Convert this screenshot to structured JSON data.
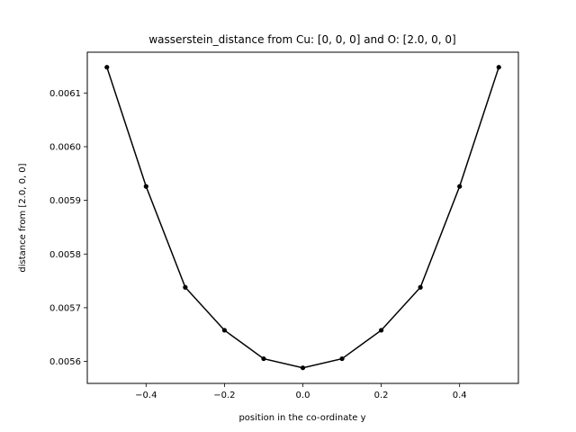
{
  "chart_data": {
    "type": "line",
    "title": "wasserstein_distance from Cu: [0, 0, 0] and O: [2.0, 0, 0]",
    "xlabel": "position in the co-ordinate y",
    "ylabel": "distance from [2.0, 0, 0]",
    "x": [
      -0.5,
      -0.4,
      -0.3,
      -0.2,
      -0.1,
      0.0,
      0.1,
      0.2,
      0.3,
      0.4,
      0.5
    ],
    "series": [
      {
        "values": [
          0.006148,
          0.005926,
          0.005738,
          0.005658,
          0.005605,
          0.005588,
          0.005605,
          0.005658,
          0.005738,
          0.005926,
          0.006148
        ],
        "color": "#000000",
        "marker": "dot"
      }
    ],
    "xlim": [
      -0.55,
      0.55
    ],
    "ylim": [
      0.005559,
      0.006176
    ],
    "xticks": [
      -0.4,
      -0.2,
      0.0,
      0.2,
      0.4
    ],
    "xtick_labels": [
      "−0.4",
      "−0.2",
      "0.0",
      "0.2",
      "0.4"
    ],
    "yticks": [
      0.0056,
      0.0057,
      0.0058,
      0.0059,
      0.006,
      0.0061
    ],
    "ytick_labels": [
      "0.0056",
      "0.0057",
      "0.0058",
      "0.0059",
      "0.0060",
      "0.0061"
    ],
    "grid": false,
    "legend": "none"
  }
}
